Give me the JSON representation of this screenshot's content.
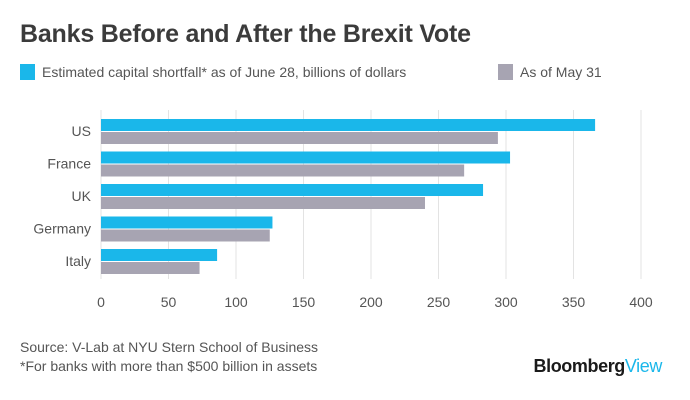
{
  "chart_data": {
    "type": "bar",
    "orientation": "horizontal",
    "title": "Banks Before and After the Brexit Vote",
    "categories": [
      "US",
      "France",
      "UK",
      "Germany",
      "Italy"
    ],
    "series": [
      {
        "name": "Estimated capital shortfall* as of June 28, billions of dollars",
        "color": "#1ab7ea",
        "values": [
          366,
          303,
          283,
          127,
          86
        ]
      },
      {
        "name": "As of May 31",
        "color": "#a7a4b2",
        "values": [
          294,
          269,
          240,
          125,
          73
        ]
      }
    ],
    "xlim": [
      0,
      400
    ],
    "xticks": [
      "0",
      "50",
      "100",
      "150",
      "200",
      "250",
      "300",
      "350",
      "400"
    ],
    "xtick_values": [
      0,
      50,
      100,
      150,
      200,
      250,
      300,
      350,
      400
    ],
    "grid": true,
    "legend_position": "top",
    "xlabel": "",
    "ylabel": ""
  },
  "footer": {
    "source": "Source: V-Lab at NYU Stern School of Business",
    "note": "*For banks with more than $500 billion in assets"
  },
  "brand": {
    "part1": "Bloomberg",
    "part2": "View",
    "accent_color": "#1ab7ea"
  }
}
